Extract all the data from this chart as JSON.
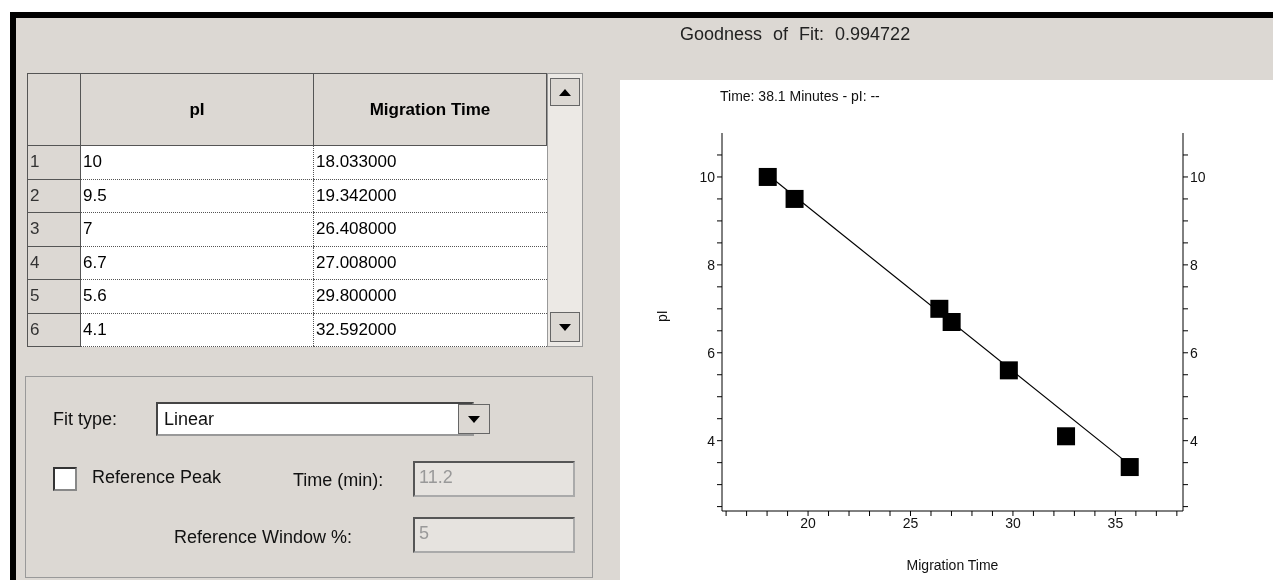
{
  "chart_data": [
    {
      "type": "scatter",
      "title": "Goodness of Fit: 0.994722",
      "subtitle": "Time: 38.1 Minutes - pI: --",
      "xlabel": "Migration Time",
      "ylabel": "pI",
      "series": [
        {
          "marker": "square",
          "color": "#000000",
          "x": [
            18.033,
            19.342,
            26.408,
            27.008,
            29.8,
            32.592,
            35.7
          ],
          "values": [
            10,
            9.5,
            7,
            6.7,
            5.6,
            4.1,
            3.4
          ]
        },
        {
          "type": "line",
          "color": "#000000",
          "x": [
            18.033,
            35.7
          ],
          "values": [
            10.05,
            3.45
          ]
        }
      ],
      "annotations": [
        "1",
        "10",
        "18.033000",
        "2",
        "9.5",
        "19.342000",
        "3",
        "7",
        "26.408000",
        "4",
        "6.7",
        "27.008000",
        "5",
        "5.6",
        "29.800000",
        "6",
        "4.1",
        "32.592000"
      ],
      "xlim": [
        15.8,
        38.3
      ],
      "xticks": [
        {
          "value": 16,
          "label": null
        },
        {
          "value": 17,
          "label": null
        },
        {
          "value": 18,
          "label": null
        },
        {
          "value": 19,
          "label": null
        },
        20,
        {
          "value": 21,
          "label": null
        },
        {
          "value": 22,
          "label": null
        },
        {
          "value": 23,
          "label": null
        },
        {
          "value": 24,
          "label": null
        },
        25,
        {
          "value": 26,
          "label": null
        },
        {
          "value": 27,
          "label": null
        },
        {
          "value": 28,
          "label": null
        },
        {
          "value": 29,
          "label": null
        },
        30,
        {
          "value": 31,
          "label": null
        },
        {
          "value": 32,
          "label": null
        },
        {
          "value": 33,
          "label": null
        },
        {
          "value": 34,
          "label": null
        },
        35,
        {
          "value": 36,
          "label": null
        },
        {
          "value": 37,
          "label": null
        },
        {
          "value": 38,
          "label": null
        }
      ],
      "ylim": [
        2.4,
        11
      ],
      "yticks": [
        {
          "value": 2.5,
          "label": null
        },
        {
          "value": 3,
          "label": null
        },
        {
          "value": 3.5,
          "label": null
        },
        4,
        {
          "value": 4.5,
          "label": null
        },
        {
          "value": 5,
          "label": null
        },
        {
          "value": 5.5,
          "label": null
        },
        6,
        {
          "value": 6.5,
          "label": null
        },
        {
          "value": 7,
          "label": null
        },
        {
          "value": 7.5,
          "label": null
        },
        8,
        {
          "value": 8.5,
          "label": null
        },
        {
          "value": 9,
          "label": null
        },
        {
          "value": 9.5,
          "label": null
        },
        10,
        {
          "value": 10.5,
          "label": null
        }
      ],
      "y2lim": [
        2.4,
        11
      ],
      "y2ticks": [
        {
          "value": 2.5,
          "label": null
        },
        {
          "value": 3,
          "label": null
        },
        {
          "value": 3.5,
          "label": null
        },
        4,
        {
          "value": 4.5,
          "label": null
        },
        {
          "value": 5,
          "label": null
        },
        {
          "value": 5.5,
          "label": null
        },
        6,
        {
          "value": 6.5,
          "label": null
        },
        {
          "value": 7,
          "label": null
        },
        {
          "value": 7.5,
          "label": null
        },
        8,
        {
          "value": 8.5,
          "label": null
        },
        {
          "value": 9,
          "label": null
        },
        {
          "value": 9.5,
          "label": null
        },
        10,
        {
          "value": 10.5,
          "label": null
        }
      ]
    },
    {
      "type": "other",
      "annotations": [
        "Fit type:",
        "Linear",
        "Reference Peak",
        "Time (min):",
        "11.2",
        "Reference Window %:",
        "5"
      ]
    }
  ]
}
